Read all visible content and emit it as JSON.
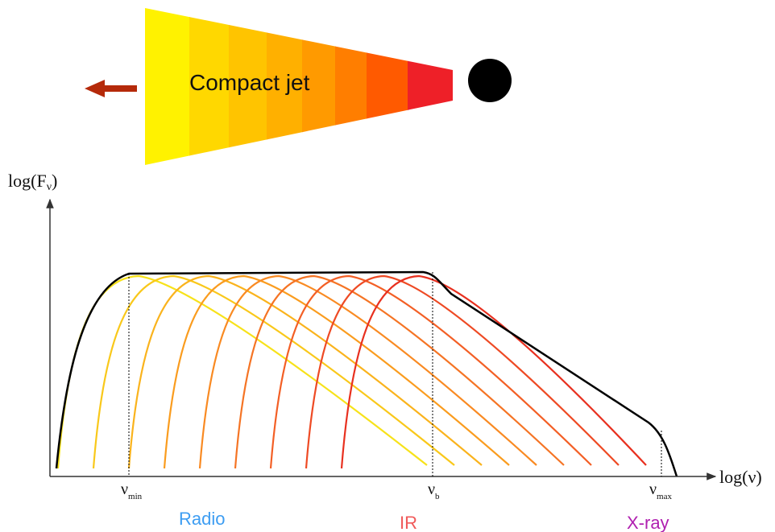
{
  "jet": {
    "label": "Compact jet"
  },
  "axes": {
    "y_label": {
      "base": "log(F",
      "subscript": "ν",
      "end": ")"
    },
    "x_label": "log(ν)"
  },
  "markers": [
    {
      "symbol": "ν",
      "subscript": "min"
    },
    {
      "symbol": "ν",
      "subscript": "b"
    },
    {
      "symbol": "ν",
      "subscript": "max"
    }
  ],
  "bands": [
    {
      "label": "Radio"
    },
    {
      "label": "IR"
    },
    {
      "label": "X-ray"
    }
  ]
}
